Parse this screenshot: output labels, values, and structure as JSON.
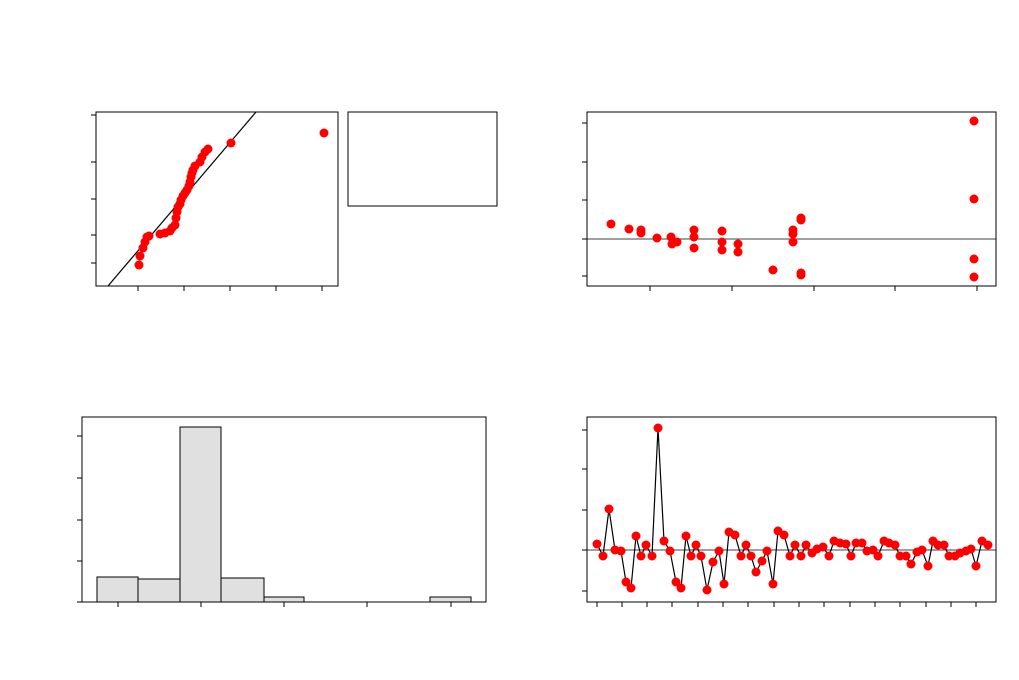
{
  "chart_data": [
    {
      "type": "scatter",
      "color": "#ff0000",
      "xlim": [
        0,
        242
      ],
      "ylim": [
        0,
        174
      ],
      "xticks": [
        42,
        88,
        134,
        180,
        226
      ],
      "yticks": [
        23,
        51,
        87,
        124,
        171
      ],
      "x": [
        43,
        44,
        47,
        49,
        51,
        53,
        64,
        69,
        74,
        76,
        79,
        80,
        81,
        82,
        84,
        85,
        87,
        89,
        91,
        93,
        94,
        95,
        96,
        97,
        99,
        104,
        106,
        109,
        112,
        135,
        228
      ],
      "values": [
        21,
        30,
        38,
        44,
        49,
        50,
        52,
        53,
        55,
        58,
        61,
        68,
        74,
        79,
        82,
        86,
        90,
        93,
        96,
        100,
        104,
        109,
        113,
        116,
        120,
        124,
        129,
        134,
        137,
        143,
        153
      ],
      "fit_line": {
        "x": [
          12,
          160
        ],
        "values": [
          0,
          174
        ]
      }
    },
    {
      "type": "scatter",
      "color": "#ff0000",
      "xlim": [
        0,
        409
      ],
      "ylim": [
        0,
        174
      ],
      "xticks": [
        63,
        145,
        227,
        308,
        390
      ],
      "yticks": [
        10,
        47,
        86,
        124,
        163
      ],
      "reference_line": 47,
      "x": [
        24,
        42,
        54,
        54,
        70,
        84,
        85,
        90,
        107,
        107,
        107,
        135,
        135,
        135,
        151,
        151,
        186,
        206,
        206,
        206,
        214,
        214,
        214,
        214,
        387,
        387,
        387,
        387
      ],
      "values": [
        62,
        57,
        56,
        53,
        48,
        49,
        42,
        44,
        56,
        49,
        38,
        55,
        44,
        36,
        42,
        34,
        16,
        56,
        52,
        44,
        66,
        68,
        13,
        11,
        165,
        87,
        27,
        9
      ]
    },
    {
      "type": "histogram",
      "color": "#e0e0e0",
      "xlim": [
        0,
        404
      ],
      "ylim": [
        0,
        185
      ],
      "xticks": [
        36,
        119,
        202,
        285,
        369
      ],
      "yticks": [
        0,
        41,
        82,
        124,
        166
      ],
      "bins": [
        15,
        56,
        98,
        139,
        182,
        222,
        264,
        306,
        348,
        389
      ],
      "values": [
        25,
        23,
        175,
        24,
        5,
        0,
        0,
        0,
        5
      ]
    },
    {
      "type": "line",
      "color": "#ff0000",
      "xlim": [
        0,
        409
      ],
      "ylim": [
        0,
        185
      ],
      "xticks": [
        10,
        35,
        60,
        85,
        111,
        136,
        161,
        187,
        212,
        237,
        263,
        288,
        313,
        339,
        364,
        389
      ],
      "yticks": [
        11,
        52,
        92,
        133,
        172
      ],
      "reference_line": 52,
      "x": [
        10,
        16,
        22,
        28,
        34,
        39,
        44,
        49,
        54,
        59,
        65,
        71,
        77,
        83,
        89,
        94,
        99,
        104,
        109,
        114,
        120,
        126,
        132,
        137,
        142,
        148,
        154,
        159,
        164,
        169,
        175,
        180,
        186,
        191,
        197,
        203,
        208,
        214,
        219,
        225,
        230,
        236,
        242,
        247,
        253,
        259,
        264,
        269,
        275,
        280,
        286,
        291,
        297,
        302,
        308,
        313,
        319,
        324,
        330,
        335,
        341,
        346,
        351,
        357,
        362,
        368,
        373,
        379,
        384,
        389,
        395,
        401
      ],
      "values": [
        58,
        46,
        93,
        52,
        51,
        20,
        14,
        66,
        46,
        57,
        46,
        174,
        61,
        51,
        20,
        14,
        66,
        46,
        57,
        46,
        12,
        40,
        51,
        18,
        70,
        67,
        46,
        57,
        46,
        30,
        41,
        51,
        18,
        71,
        67,
        46,
        57,
        46,
        57,
        49,
        53,
        55,
        46,
        61,
        59,
        58,
        46,
        59,
        59,
        51,
        52,
        46,
        61,
        59,
        57,
        46,
        46,
        38,
        50,
        52,
        36,
        61,
        57,
        57,
        46,
        46,
        49,
        51,
        53,
        36,
        61,
        57
      ]
    }
  ]
}
